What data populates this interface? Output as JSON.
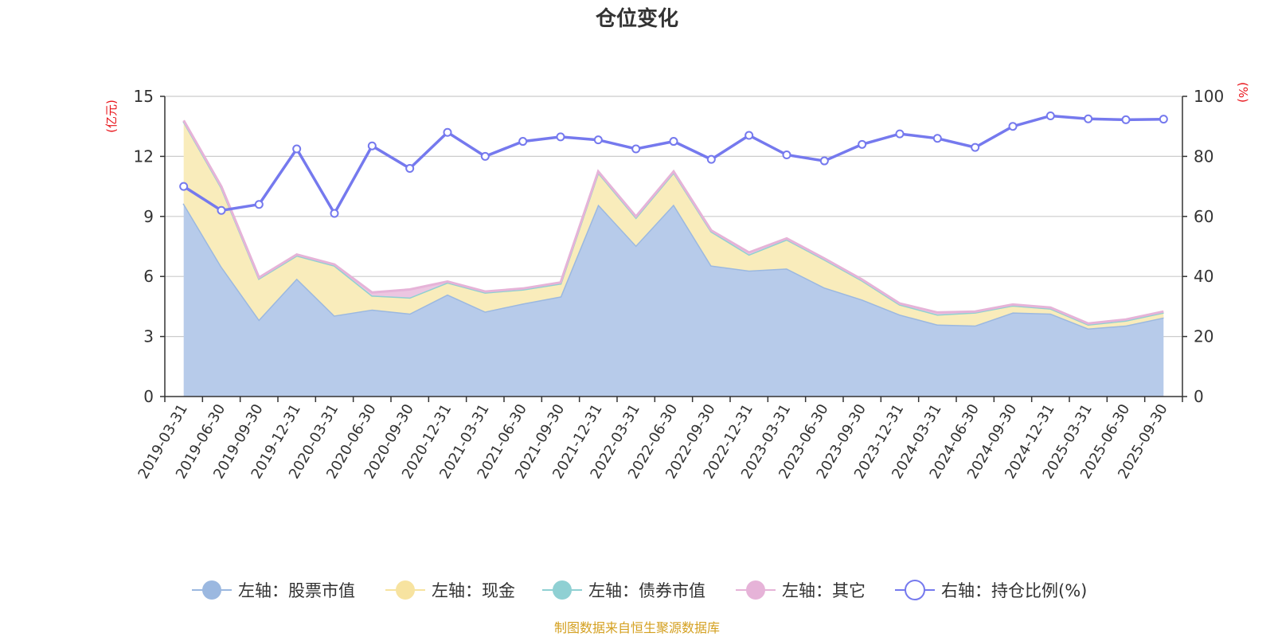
{
  "chart_data": {
    "type": "area",
    "title": "仓位变化",
    "left_axis_unit": "(亿元)",
    "right_axis_unit": "(%)",
    "ylim_left": [
      0,
      15
    ],
    "yticks_left": [
      "0",
      "3",
      "6",
      "9",
      "12",
      "15"
    ],
    "ylim_right": [
      0,
      100
    ],
    "yticks_right": [
      "0",
      "20",
      "40",
      "60",
      "80",
      "100"
    ],
    "categories": [
      "2019-03-31",
      "2019-06-30",
      "2019-09-30",
      "2019-12-31",
      "2020-03-31",
      "2020-06-30",
      "2020-09-30",
      "2020-12-31",
      "2021-03-31",
      "2021-06-30",
      "2021-09-30",
      "2021-12-31",
      "2022-03-31",
      "2022-06-30",
      "2022-09-30",
      "2022-12-31",
      "2023-03-31",
      "2023-06-30",
      "2023-09-30",
      "2023-12-31",
      "2024-03-31",
      "2024-06-30",
      "2024-09-30",
      "2024-12-31",
      "2025-03-31",
      "2025-06-30",
      "2025-09-30"
    ],
    "series": [
      {
        "name": "左轴：股票市值",
        "axis": "left",
        "kind": "stacked-area",
        "color": "#9bb8e0",
        "fill": "#b7cbea",
        "values": [
          9.65,
          6.5,
          3.85,
          5.9,
          4.05,
          4.35,
          4.15,
          5.1,
          4.25,
          4.65,
          5.0,
          9.6,
          7.55,
          9.6,
          6.55,
          6.3,
          6.4,
          5.45,
          4.85,
          4.1,
          3.6,
          3.55,
          4.2,
          4.15,
          3.4,
          3.55,
          3.95
        ]
      },
      {
        "name": "左轴：现金",
        "axis": "left",
        "kind": "stacked-area",
        "color": "#f7e3a0",
        "fill": "#f9ecbb",
        "values": [
          4.1,
          3.95,
          2.05,
          1.15,
          2.5,
          0.7,
          0.8,
          0.6,
          0.95,
          0.7,
          0.65,
          1.6,
          1.4,
          1.6,
          1.7,
          0.8,
          1.45,
          1.4,
          0.95,
          0.5,
          0.5,
          0.65,
          0.35,
          0.25,
          0.2,
          0.25,
          0.25
        ]
      },
      {
        "name": "左轴：债券市值",
        "axis": "left",
        "kind": "stacked-area",
        "color": "#8fd0d3",
        "fill": "#a8dadc",
        "values": [
          0,
          0,
          0,
          0,
          0,
          0,
          0,
          0,
          0,
          0,
          0,
          0,
          0,
          0,
          0,
          0,
          0,
          0,
          0,
          0,
          0,
          0,
          0,
          0,
          0,
          0,
          0
        ]
      },
      {
        "name": "左轴：其它",
        "axis": "left",
        "kind": "stacked-area",
        "color": "#e6b3d8",
        "fill": "#ecc6e1",
        "values": [
          0.05,
          0.05,
          0.05,
          0.05,
          0.05,
          0.15,
          0.4,
          0.05,
          0.05,
          0.05,
          0.05,
          0.05,
          0.05,
          0.05,
          0.05,
          0.1,
          0.05,
          0.05,
          0.05,
          0.05,
          0.1,
          0.05,
          0.05,
          0.05,
          0.05,
          0.05,
          0.05
        ]
      },
      {
        "name": "右轴：持仓比例(%)",
        "axis": "right",
        "kind": "line",
        "color": "#7579ee",
        "values": [
          70,
          62,
          64,
          82.5,
          61,
          83.5,
          76,
          88,
          80,
          85,
          86.5,
          85.5,
          82.5,
          85,
          79,
          87,
          80.5,
          78.5,
          84,
          87.5,
          86,
          83,
          90,
          93.5,
          92.5,
          92.2,
          92.4
        ]
      }
    ]
  },
  "legend": [
    {
      "label": "左轴：股票市值",
      "color": "#9bb8e0",
      "marker": "filled"
    },
    {
      "label": "左轴：现金",
      "color": "#f7e3a0",
      "marker": "filled"
    },
    {
      "label": "左轴：债券市值",
      "color": "#8fd0d3",
      "marker": "filled"
    },
    {
      "label": "左轴：其它",
      "color": "#e6b3d8",
      "marker": "filled"
    },
    {
      "label": "右轴：持仓比例(%)",
      "color": "#7579ee",
      "marker": "hollow"
    }
  ],
  "source": "制图数据来自恒生聚源数据库",
  "colors": {
    "unit": "#e8141a",
    "source": "#d4a020",
    "grid": "#cccccc",
    "axis": "#333333"
  }
}
